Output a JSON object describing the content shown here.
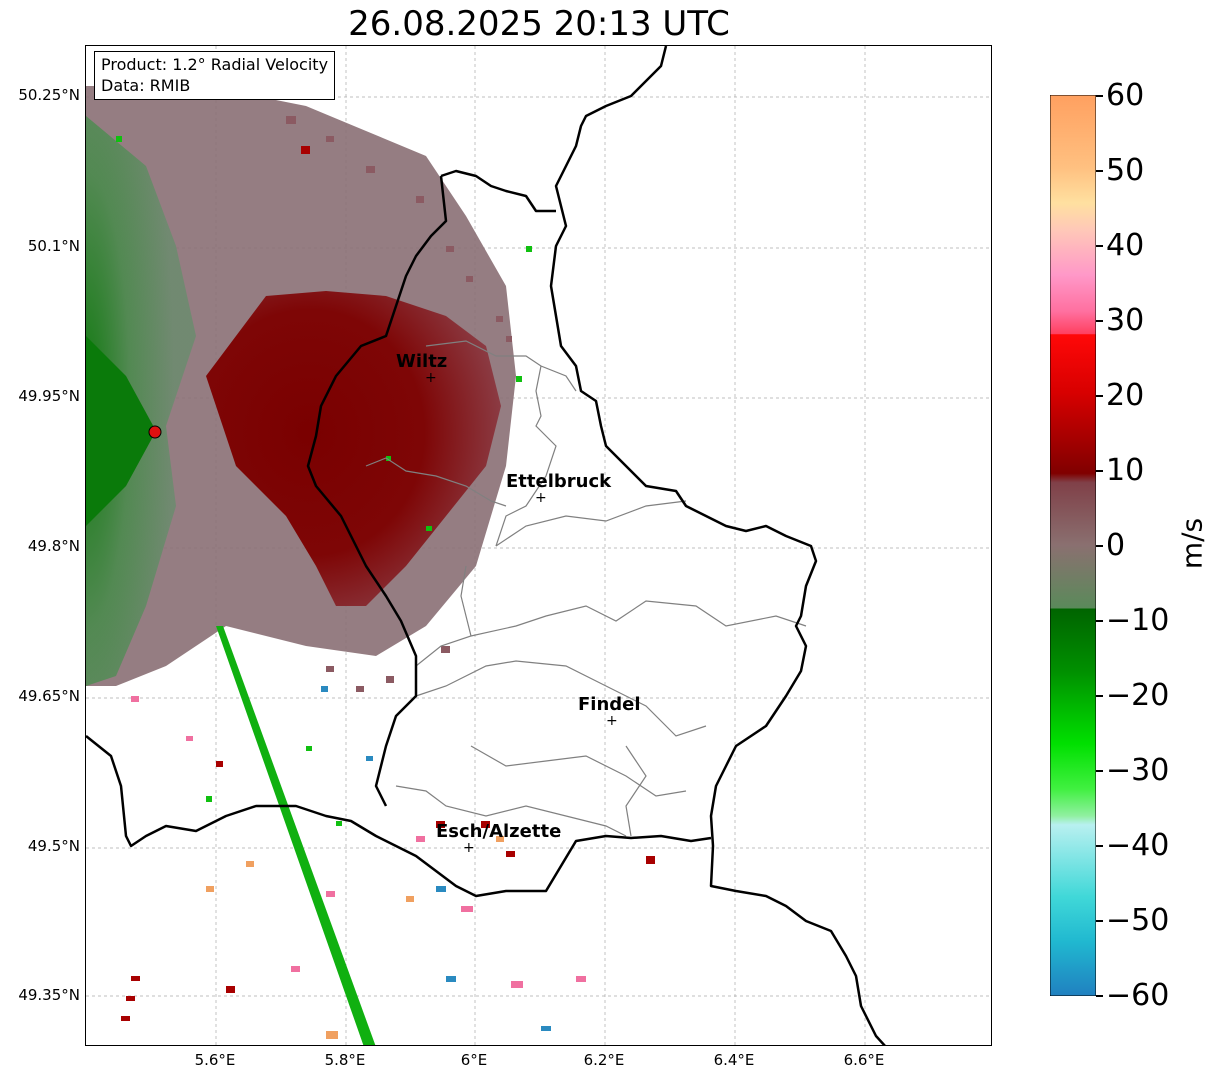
{
  "title": "26.08.2025 20:13 UTC",
  "info": {
    "product": "Product: 1.2° Radial Velocity",
    "data": "Data: RMIB"
  },
  "lat_labels": [
    "50.25°N",
    "50.1°N",
    "49.95°N",
    "49.8°N",
    "49.65°N",
    "49.5°N",
    "49.35°N"
  ],
  "lon_labels": [
    "5.6°E",
    "5.8°E",
    "6°E",
    "6.2°E",
    "6.4°E",
    "6.6°E"
  ],
  "cities": [
    {
      "name": "Wiltz"
    },
    {
      "name": "Ettelbruck"
    },
    {
      "name": "Findel"
    },
    {
      "name": "Esch/Alzette"
    }
  ],
  "marker_symbol": "+",
  "colorbar": {
    "unit": "m/s",
    "ticks": [
      "60",
      "50",
      "40",
      "30",
      "20",
      "10",
      "0",
      "−10",
      "−20",
      "−30",
      "−40",
      "−50",
      "−60"
    ],
    "range": [
      -60,
      60
    ]
  },
  "colors": {
    "radar_site": "#e01010",
    "outbound_strong": "#7a0000",
    "outbound_weak": "#8b5a62",
    "near_zero": "#8a7a7c",
    "inbound_weak": "#5f8a60",
    "inbound_strong": "#0a7a0a",
    "interference_beam": "#10b010",
    "border": "#000000",
    "canton_border": "#808080"
  }
}
